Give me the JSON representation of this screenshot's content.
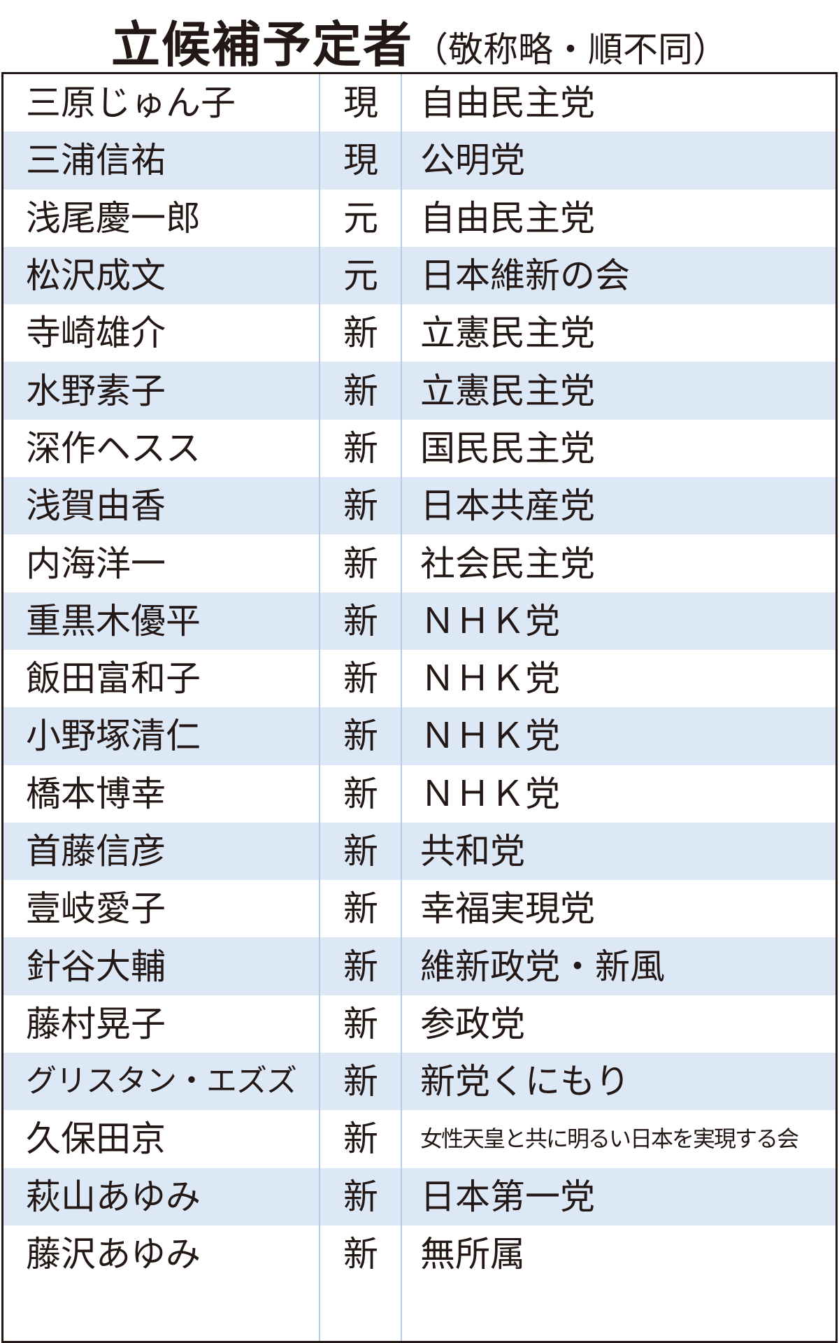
{
  "title": {
    "main": "立候補予定者",
    "sub": "（敬称略・順不同）"
  },
  "colors": {
    "row_shade": "#dce8f6",
    "divider": "#b6cbe6",
    "text": "#231815"
  },
  "rows": [
    {
      "name": "三原じゅん子",
      "status": "現",
      "party": "自由民主党"
    },
    {
      "name": "三浦信祐",
      "status": "現",
      "party": "公明党"
    },
    {
      "name": "浅尾慶一郎",
      "status": "元",
      "party": "自由民主党"
    },
    {
      "name": "松沢成文",
      "status": "元",
      "party": "日本維新の会"
    },
    {
      "name": "寺崎雄介",
      "status": "新",
      "party": "立憲民主党"
    },
    {
      "name": "水野素子",
      "status": "新",
      "party": "立憲民主党"
    },
    {
      "name": "深作ヘスス",
      "status": "新",
      "party": "国民民主党"
    },
    {
      "name": "浅賀由香",
      "status": "新",
      "party": "日本共産党"
    },
    {
      "name": "内海洋一",
      "status": "新",
      "party": "社会民主党"
    },
    {
      "name": "重黒木優平",
      "status": "新",
      "party": "ＮＨＫ党"
    },
    {
      "name": "飯田富和子",
      "status": "新",
      "party": "ＮＨＫ党"
    },
    {
      "name": "小野塚清仁",
      "status": "新",
      "party": "ＮＨＫ党"
    },
    {
      "name": "橋本博幸",
      "status": "新",
      "party": "ＮＨＫ党"
    },
    {
      "name": "首藤信彦",
      "status": "新",
      "party": "共和党"
    },
    {
      "name": "壹岐愛子",
      "status": "新",
      "party": "幸福実現党"
    },
    {
      "name": "針谷大輔",
      "status": "新",
      "party": "維新政党・新風"
    },
    {
      "name": "藤村晃子",
      "status": "新",
      "party": "参政党"
    },
    {
      "name": "グリスタン・エズズ",
      "status": "新",
      "party": "新党くにもり"
    },
    {
      "name": "久保田京",
      "status": "新",
      "party": "女性天皇と共に明るい日本を実現する会"
    },
    {
      "name": "萩山あゆみ",
      "status": "新",
      "party": "日本第一党"
    },
    {
      "name": "藤沢あゆみ",
      "status": "新",
      "party": "無所属"
    }
  ]
}
